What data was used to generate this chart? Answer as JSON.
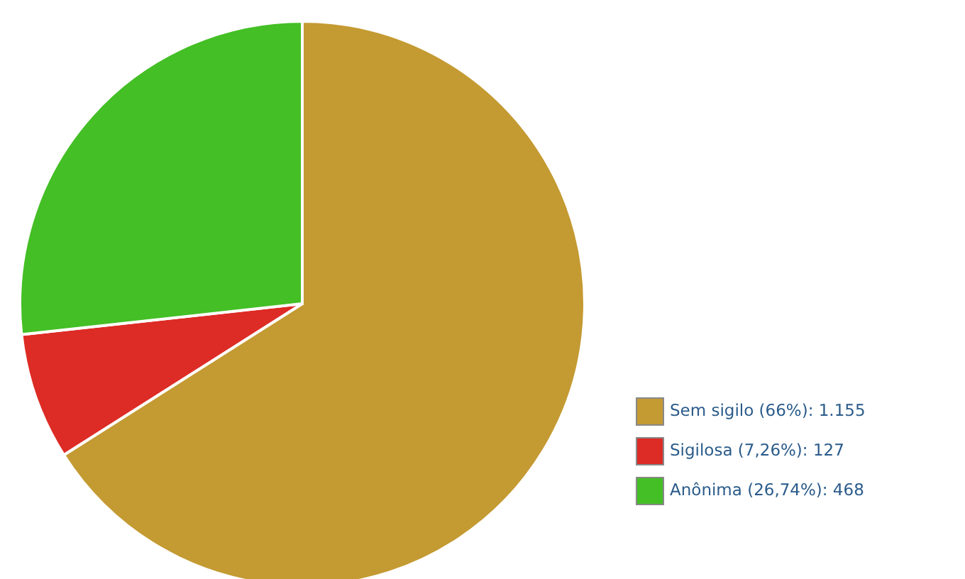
{
  "chart_data": {
    "type": "pie",
    "categories": [
      "Sem sigilo",
      "Sigilosa",
      "Anônima"
    ],
    "values": [
      1155,
      127,
      468
    ],
    "colors": [
      "#c49a32",
      "#dd2b25",
      "#44bf25"
    ],
    "value_labels": [
      "(66%): 1.155",
      "(7,26%): 127",
      "(26,74%): 468"
    ],
    "legend": "bottom right"
  }
}
